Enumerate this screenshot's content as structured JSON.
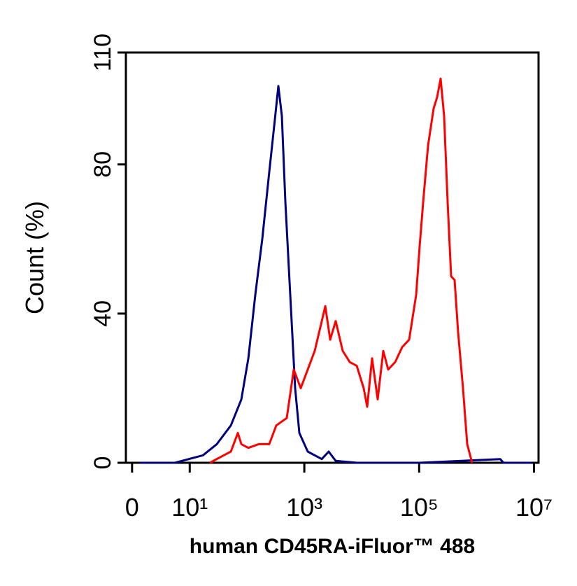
{
  "chart_data": {
    "type": "line",
    "xlabel": "human CD45RA-iFluor™ 488",
    "ylabel": "Count  (%)",
    "xscale": "asinh",
    "xlim": [
      -0.5,
      12000000
    ],
    "xticks": [
      0,
      {
        "value": 10,
        "label": "10¹"
      },
      {
        "value": 1000,
        "label": "10³"
      },
      {
        "value": 100000,
        "label": "10⁵"
      },
      {
        "value": 10000000,
        "label": "10⁷"
      }
    ],
    "ylim": [
      0,
      110
    ],
    "yticks": [
      0,
      40,
      80,
      110
    ],
    "series": [
      {
        "color": "#00007f",
        "x": [
          0.64,
          5.4,
          17.1,
          29.9,
          52.5,
          80,
          106,
          140,
          185,
          245,
          307,
          353,
          406,
          468,
          569,
          693,
          820,
          1148,
          2014,
          2661,
          3524,
          8185,
          102000,
          2570000,
          2950000,
          9080000
        ],
        "values": [
          0,
          0,
          2,
          5,
          10,
          17,
          28,
          45,
          60,
          78,
          92,
          101,
          93,
          70,
          45,
          20,
          8,
          3,
          1,
          3,
          0.5,
          0,
          0,
          1,
          0,
          0
        ]
      },
      {
        "color": "#ff0000",
        "x": [
          22.6,
          39.6,
          52.5,
          69.5,
          80,
          106,
          161,
          245,
          325,
          494,
          655,
          867,
          1148,
          1520,
          2014,
          2317,
          2818,
          3524,
          4667,
          6180,
          8185,
          10810,
          12450,
          15140,
          18970,
          23710,
          28840,
          38190,
          50580,
          66990,
          88720,
          102000,
          117500,
          142900,
          178600,
          205600,
          236600,
          272300,
          313300,
          360600,
          415000,
          477500,
          580700,
          687100,
          835600
        ],
        "values": [
          0,
          2,
          3,
          8,
          5,
          4,
          5,
          5,
          10,
          12,
          25,
          20,
          25,
          30,
          38,
          42,
          33,
          38,
          30,
          27,
          26,
          20,
          15,
          28,
          17,
          30,
          25,
          27,
          31,
          33,
          45,
          58,
          70,
          85,
          95,
          98,
          103,
          93,
          70,
          50,
          49,
          35,
          20,
          5,
          0
        ]
      }
    ]
  }
}
